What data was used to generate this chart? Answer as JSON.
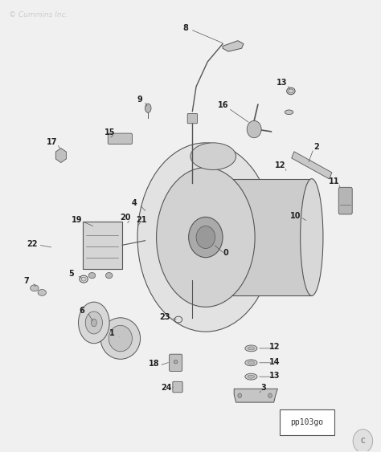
{
  "background_color": "#f0f0f0",
  "fig_width": 4.74,
  "fig_height": 5.63,
  "dpi": 100,
  "watermark": "© Cummins Inc.",
  "part_label": "pp103go",
  "line_color": "#555555",
  "label_color": "#222222",
  "label_fontsize": 7.0,
  "watermark_color": "#cccccc",
  "watermark_fontsize": 6.5
}
